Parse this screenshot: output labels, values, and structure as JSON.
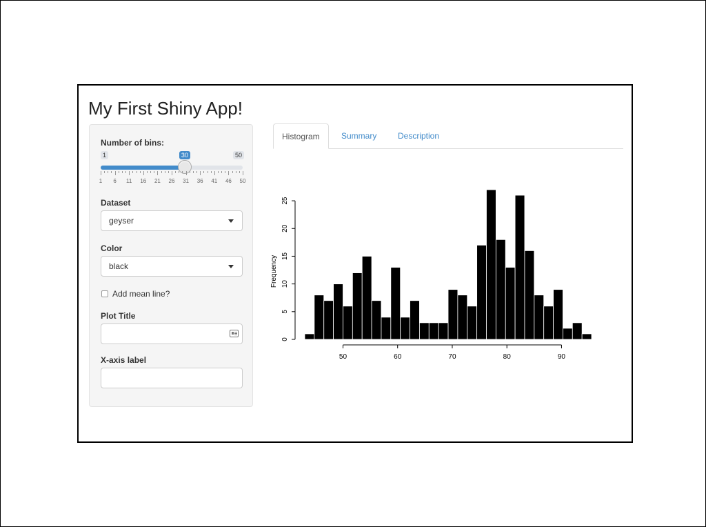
{
  "app": {
    "title": "My First Shiny App!"
  },
  "sidebar": {
    "bins": {
      "label": "Number of bins:",
      "min": 1,
      "max": 50,
      "value": 30,
      "min_label": "1",
      "max_label": "50",
      "value_label": "30",
      "grid_labels": [
        "1",
        "6",
        "11",
        "16",
        "21",
        "26",
        "31",
        "36",
        "41",
        "46",
        "50"
      ]
    },
    "dataset": {
      "label": "Dataset",
      "selected": "geyser"
    },
    "color": {
      "label": "Color",
      "selected": "black"
    },
    "mean_line": {
      "label": "Add mean line?",
      "checked": false
    },
    "plot_title": {
      "label": "Plot Title",
      "value": ""
    },
    "x_label": {
      "label": "X-axis label",
      "value": ""
    }
  },
  "tabs": [
    {
      "label": "Histogram",
      "active": true
    },
    {
      "label": "Summary",
      "active": false
    },
    {
      "label": "Description",
      "active": false
    }
  ],
  "colors": {
    "accent": "#428bca",
    "bar_fill": "#000000"
  },
  "chart_data": {
    "type": "bar",
    "title": "",
    "xlabel": "",
    "ylabel": "Frequency",
    "bin_start": 43,
    "bin_width": 1.75,
    "values": [
      1,
      8,
      7,
      10,
      6,
      12,
      15,
      7,
      4,
      13,
      4,
      7,
      3,
      3,
      3,
      9,
      8,
      6,
      17,
      27,
      18,
      13,
      26,
      16,
      8,
      6,
      9,
      2,
      3,
      1
    ],
    "xlim": [
      43,
      96
    ],
    "ylim": [
      0,
      27
    ],
    "x_ticks": [
      50,
      60,
      70,
      80,
      90
    ],
    "y_ticks": [
      0,
      5,
      10,
      15,
      20,
      25
    ]
  }
}
